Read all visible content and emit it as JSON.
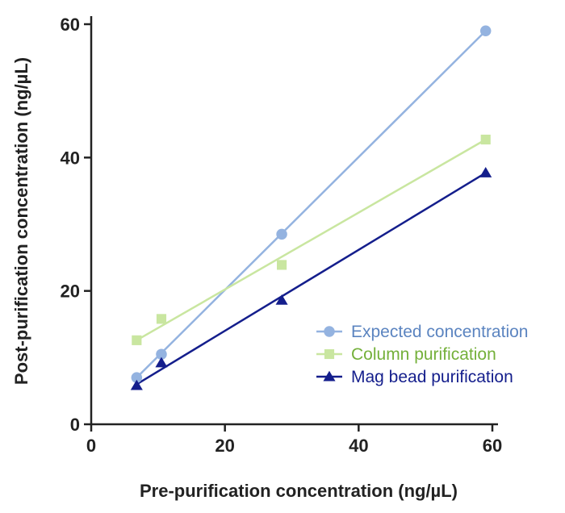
{
  "chart_data": {
    "type": "scatter",
    "xlabel": "Pre-purification concentration (ng/µL)",
    "ylabel": "Post-purification concentration (ng/µL)",
    "xlim": [
      0,
      60
    ],
    "ylim": [
      0,
      60
    ],
    "xticks": [
      "0",
      "20",
      "40",
      "60"
    ],
    "yticks": [
      "0",
      "20",
      "40",
      "60"
    ],
    "grid": false,
    "legend_position": "bottom-right",
    "series": [
      {
        "name": "Expected concentration",
        "marker": "circle",
        "color": "#94b3e0",
        "text_color": "#5b84c0",
        "points": [
          [
            6.8,
            7.0
          ],
          [
            10.5,
            10.5
          ],
          [
            28.5,
            28.5
          ],
          [
            59.0,
            59.0
          ]
        ],
        "fit": [
          [
            6.8,
            7.0
          ],
          [
            59.0,
            59.0
          ]
        ]
      },
      {
        "name": "Column purification",
        "marker": "square",
        "color": "#c9e6a0",
        "text_color": "#74b03a",
        "points": [
          [
            6.8,
            12.6
          ],
          [
            10.5,
            15.8
          ],
          [
            28.5,
            23.9
          ],
          [
            59.0,
            42.7
          ]
        ],
        "fit": [
          [
            6.8,
            12.6
          ],
          [
            59.0,
            42.7
          ]
        ]
      },
      {
        "name": "Mag bead purification",
        "marker": "triangle",
        "color": "#141e8c",
        "text_color": "#141e8c",
        "points": [
          [
            6.8,
            5.8
          ],
          [
            10.5,
            9.2
          ],
          [
            28.5,
            18.6
          ],
          [
            59.0,
            37.7
          ]
        ],
        "fit": [
          [
            6.8,
            6.0
          ],
          [
            59.0,
            37.7
          ]
        ]
      }
    ]
  }
}
